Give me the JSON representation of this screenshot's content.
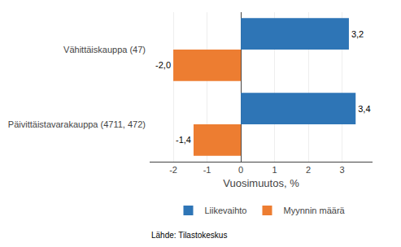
{
  "chart_data": {
    "type": "bar",
    "orientation": "horizontal",
    "categories": [
      "Päivittäistavarakauppa (4711, 472)",
      "Vähittäiskauppa (47)"
    ],
    "series": [
      {
        "name": "Liikevaihto",
        "color": "#2e75b6",
        "values": [
          3.4,
          3.2
        ],
        "value_labels": [
          "3,4",
          "3,2"
        ]
      },
      {
        "name": "Myynnin määrä",
        "color": "#ed7d31",
        "values": [
          -1.4,
          -2.0
        ],
        "value_labels": [
          "-1,4",
          "-2,0"
        ]
      }
    ],
    "xlabel": "Vuosimuutos, %",
    "xlim": [
      -2.7,
      3.9
    ],
    "xticks": [
      -2,
      -1,
      0,
      1,
      2,
      3
    ],
    "grid": true,
    "legend": "bottom",
    "data_labels": true,
    "annotations": [
      "Lähde: Tilastokeskus"
    ]
  }
}
